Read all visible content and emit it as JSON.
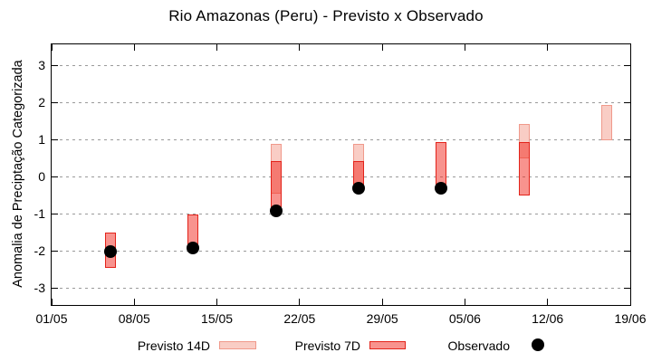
{
  "title": "Rio Amazonas (Peru) - Previsto x Observado",
  "y_axis_label": "Anomalia de Preciptação Categorizada",
  "legend": {
    "previsto14": "Previsto 14D",
    "previsto7": "Previsto 7D",
    "observado": "Observado"
  },
  "colors": {
    "previsto14_fill": "#f9cdc5",
    "previsto14_border": "#f0998b",
    "previsto7_fill": "rgba(242,40,30,0.5)",
    "previsto7_border": "#e3231a",
    "observado": "#000000",
    "grid": "#9a9a9a",
    "axis": "#000000"
  },
  "chart_data": {
    "type": "bar",
    "subtype": "forecast-range-bars-with-observed-points",
    "title": "Rio Amazonas (Peru) - Previsto x Observado",
    "xlabel": "",
    "ylabel": "Anomalia de Preciptação Categorizada",
    "ylim": [
      -3.44,
      3.585
    ],
    "yticks": [
      3,
      2,
      1,
      0,
      -1,
      -2,
      -3
    ],
    "xticks": [
      "01/05",
      "08/05",
      "15/05",
      "22/05",
      "29/05",
      "05/06",
      "12/06",
      "19/06"
    ],
    "grid": "horizontal dotted",
    "legend_position": "bottom",
    "series": [
      {
        "name": "Previsto 14D",
        "type": "range-bar",
        "bars": [
          {
            "date": "20/05",
            "low": -0.45,
            "high": 0.9
          },
          {
            "date": "27/05",
            "low": -0.2,
            "high": 0.9
          },
          {
            "date": "10/06",
            "low": 0.5,
            "high": 1.45
          },
          {
            "date": "17/06",
            "low": 1.0,
            "high": 1.95
          }
        ]
      },
      {
        "name": "Previsto 7D",
        "type": "range-bar",
        "bars": [
          {
            "date": "06/05",
            "low": -2.45,
            "high": -1.5
          },
          {
            "date": "13/05",
            "low": -1.8,
            "high": -1.0
          },
          {
            "date": "20/05",
            "low": -0.85,
            "high": 0.45
          },
          {
            "date": "27/05",
            "low": -0.2,
            "high": 0.45
          },
          {
            "date": "03/06",
            "low": -0.2,
            "high": 0.95
          },
          {
            "date": "10/06",
            "low": -0.5,
            "high": 0.95
          }
        ]
      },
      {
        "name": "Observado",
        "type": "scatter",
        "points": [
          {
            "date": "06/05",
            "value": -2.0
          },
          {
            "date": "13/05",
            "value": -1.9
          },
          {
            "date": "20/05",
            "value": -0.9
          },
          {
            "date": "27/05",
            "value": -0.3
          },
          {
            "date": "03/06",
            "value": -0.3
          }
        ]
      }
    ]
  }
}
